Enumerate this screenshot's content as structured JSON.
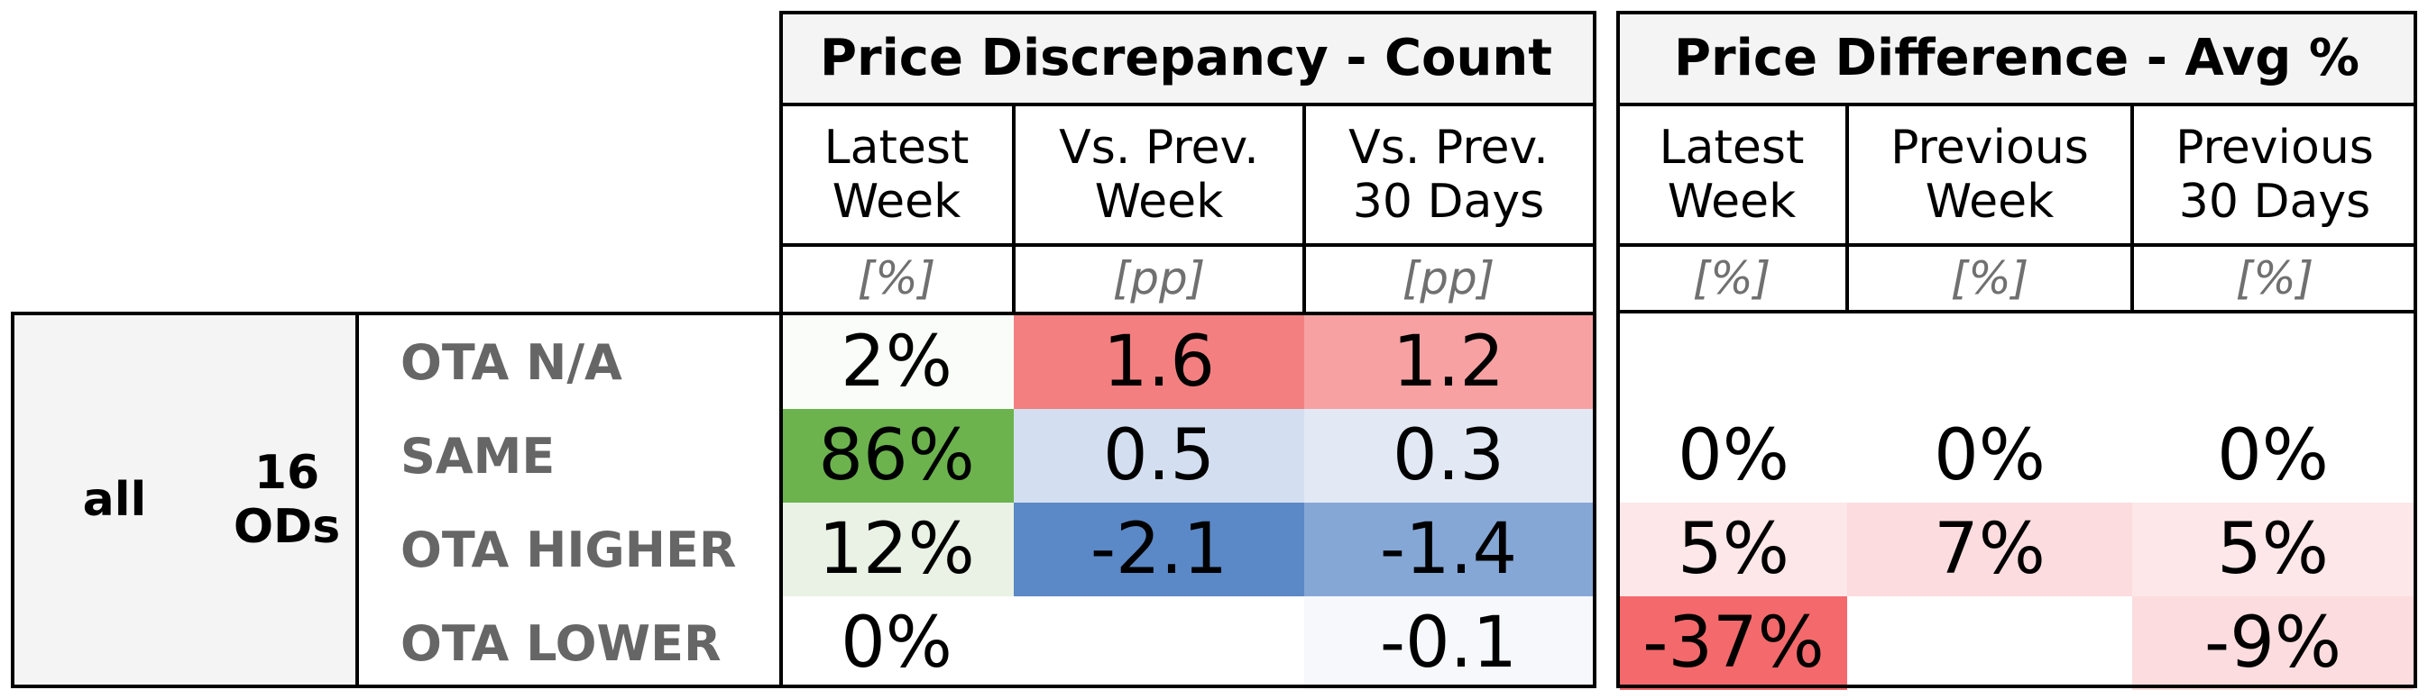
{
  "chart_data": {
    "type": "table",
    "groups": [
      {
        "title": "Price Discrepancy - Count",
        "columns": [
          {
            "label": [
              "Latest",
              "Week"
            ],
            "unit": "[%]"
          },
          {
            "label": [
              "Vs. Prev.",
              "Week"
            ],
            "unit": "[pp]"
          },
          {
            "label": [
              "Vs. Prev.",
              "30 Days"
            ],
            "unit": "[pp]"
          }
        ]
      },
      {
        "title": "Price Difference - Avg %",
        "columns": [
          {
            "label": [
              "Latest",
              "Week"
            ],
            "unit": "[%]"
          },
          {
            "label": [
              "Previous",
              "Week"
            ],
            "unit": "[%]"
          },
          {
            "label": [
              "Previous",
              "30 Days"
            ],
            "unit": "[%]"
          }
        ]
      }
    ],
    "segment": "all",
    "od_count": [
      "16",
      "ODs"
    ],
    "rows": [
      {
        "label": "OTA N/A",
        "count": [
          "2%",
          "1.6",
          "1.2"
        ],
        "count_colors": [
          "#f9fcf8",
          "#f47f80",
          "#f7a1a3"
        ],
        "avg": [
          "",
          "",
          ""
        ],
        "avg_colors": [
          "#ffffff",
          "#ffffff",
          "#ffffff"
        ]
      },
      {
        "label": "SAME",
        "count": [
          "86%",
          "0.5",
          "0.3"
        ],
        "count_colors": [
          "#6cb34e",
          "#d3dff0",
          "#e2e9f5"
        ],
        "avg": [
          "0%",
          "0%",
          "0%"
        ],
        "avg_colors": [
          "#ffffff",
          "#ffffff",
          "#ffffff"
        ]
      },
      {
        "label": "OTA HIGHER",
        "count": [
          "12%",
          "-2.1",
          "-1.4"
        ],
        "count_colors": [
          "#e9f2e4",
          "#5b88c6",
          "#85a7d6"
        ],
        "avg": [
          "5%",
          "7%",
          "5%"
        ],
        "avg_colors": [
          "#fde7e8",
          "#fcdcde",
          "#fde7e8"
        ]
      },
      {
        "label": "OTA LOWER",
        "count": [
          "0%",
          "",
          "-0.1"
        ],
        "count_colors": [
          "#ffffff",
          "#ffffff",
          "#f6f8fb"
        ],
        "avg": [
          "-37%",
          "",
          "-9%"
        ],
        "avg_colors": [
          "#f4696b",
          "#ffffff",
          "#fcdcde"
        ]
      }
    ]
  }
}
